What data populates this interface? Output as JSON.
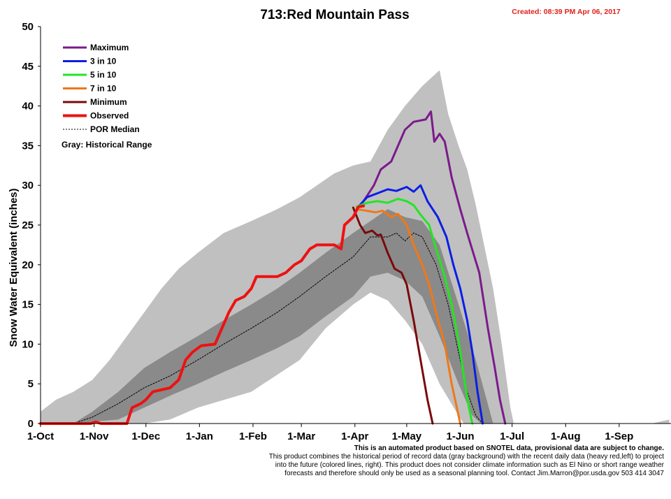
{
  "title": "713:Red Mountain Pass",
  "created": "Created: 08:39 PM Apr 06, 2017",
  "footnote": {
    "lead": "This is an automated product based on SNOTEL data, provisional data are subject to change.",
    "lines": [
      "This product combines the historical period of record data (gray background) with the recent daily data (heavy red,left) to project",
      "into the future (colored lines, right). This product does not consider climate information such as El Nino or short range weather",
      "forecasts and therefore should only be used as a seasonal planning tool. Contact Jim.Marron@por.usda.gov 503 414 3047"
    ]
  },
  "colors": {
    "maximum": "#7b1a8c",
    "p30": "#0a1ee6",
    "p50": "#22e622",
    "p70": "#f07818",
    "minimum": "#7a0a0a",
    "observed": "#ee1111",
    "median": "#000000",
    "range_outer": "#c0c0c0",
    "range_inner": "#8a8a8a",
    "range_core": "#6e6e6e",
    "created": "#e0201c"
  },
  "chart_data": {
    "type": "line",
    "title": "713:Red Mountain Pass",
    "xlabel": "",
    "ylabel": "Snow Water Equivalent (inches)",
    "ylim": [
      0,
      50
    ],
    "yticks": [
      0,
      5,
      10,
      15,
      20,
      25,
      30,
      35,
      40,
      45,
      50
    ],
    "x_unit": "date (water year Oct 1 2016 - Sep 30 2017)",
    "xticks": [
      "1-Oct",
      "1-Nov",
      "1-Dec",
      "1-Jan",
      "1-Feb",
      "1-Mar",
      "1-Apr",
      "1-May",
      "1-Jun",
      "1-Jul",
      "1-Aug",
      "1-Sep"
    ],
    "legend": {
      "placement": "top-left",
      "entries": [
        "Maximum",
        "3 in 10",
        "5 in 10",
        "7 in 10",
        "Minimum",
        "Observed",
        "POR Median"
      ],
      "note": "Gray: Historical Range"
    },
    "historical_range": {
      "outer_upper": [
        [
          "2016-10-01",
          1.5
        ],
        [
          "2016-10-10",
          3
        ],
        [
          "2016-10-20",
          4
        ],
        [
          "2016-10-31",
          5.5
        ],
        [
          "2016-11-10",
          8
        ],
        [
          "2016-11-20",
          11
        ],
        [
          "2016-11-30",
          14
        ],
        [
          "2016-12-10",
          17
        ],
        [
          "2016-12-20",
          19.5
        ],
        [
          "2016-12-31",
          21.5
        ],
        [
          "2017-01-15",
          24
        ],
        [
          "2017-01-31",
          25.5
        ],
        [
          "2017-02-15",
          27
        ],
        [
          "2017-02-28",
          28.5
        ],
        [
          "2017-03-10",
          30
        ],
        [
          "2017-03-20",
          31.5
        ],
        [
          "2017-03-31",
          32.5
        ],
        [
          "2017-04-10",
          33
        ],
        [
          "2017-04-20",
          37
        ],
        [
          "2017-04-30",
          40
        ],
        [
          "2017-05-10",
          42.5
        ],
        [
          "2017-05-15",
          43.5
        ],
        [
          "2017-05-20",
          44.5
        ],
        [
          "2017-05-25",
          39
        ],
        [
          "2017-05-31",
          35
        ],
        [
          "2017-06-05",
          32
        ],
        [
          "2017-06-10",
          27.5
        ],
        [
          "2017-06-20",
          17
        ],
        [
          "2017-06-25",
          10
        ],
        [
          "2017-06-30",
          2
        ],
        [
          "2017-07-02",
          0
        ],
        [
          "2017-09-20",
          0
        ],
        [
          "2017-09-30",
          0.5
        ]
      ],
      "outer_lower": [
        [
          "2016-10-01",
          0
        ],
        [
          "2016-11-30",
          0
        ],
        [
          "2016-12-15",
          0.5
        ],
        [
          "2016-12-31",
          2
        ],
        [
          "2017-01-31",
          4
        ],
        [
          "2017-02-28",
          8
        ],
        [
          "2017-03-15",
          12
        ],
        [
          "2017-03-31",
          15
        ],
        [
          "2017-04-10",
          16.5
        ],
        [
          "2017-04-20",
          15.5
        ],
        [
          "2017-04-30",
          13
        ],
        [
          "2017-05-10",
          10
        ],
        [
          "2017-05-20",
          5
        ],
        [
          "2017-05-31",
          1
        ],
        [
          "2017-06-03",
          0
        ],
        [
          "2017-09-30",
          0
        ]
      ],
      "inner_upper": [
        [
          "2016-10-20",
          0
        ],
        [
          "2016-10-31",
          1.5
        ],
        [
          "2016-11-15",
          4
        ],
        [
          "2016-11-30",
          7
        ],
        [
          "2016-12-15",
          9
        ],
        [
          "2016-12-31",
          11
        ],
        [
          "2017-01-15",
          13
        ],
        [
          "2017-01-31",
          15
        ],
        [
          "2017-02-15",
          17
        ],
        [
          "2017-02-28",
          19
        ],
        [
          "2017-03-15",
          21.5
        ],
        [
          "2017-03-31",
          24
        ],
        [
          "2017-04-10",
          25.5
        ],
        [
          "2017-04-20",
          27
        ],
        [
          "2017-04-30",
          26
        ],
        [
          "2017-05-10",
          25.5
        ],
        [
          "2017-05-20",
          22.5
        ],
        [
          "2017-05-31",
          15
        ],
        [
          "2017-06-10",
          8
        ],
        [
          "2017-06-20",
          0
        ]
      ],
      "inner_lower": [
        [
          "2016-10-20",
          0
        ],
        [
          "2016-11-15",
          0.5
        ],
        [
          "2016-11-30",
          2
        ],
        [
          "2016-12-15",
          3.5
        ],
        [
          "2016-12-31",
          5
        ],
        [
          "2017-01-15",
          6.5
        ],
        [
          "2017-01-31",
          8
        ],
        [
          "2017-02-15",
          9.5
        ],
        [
          "2017-02-28",
          11
        ],
        [
          "2017-03-15",
          13.5
        ],
        [
          "2017-03-31",
          16
        ],
        [
          "2017-04-10",
          18.5
        ],
        [
          "2017-04-20",
          19
        ],
        [
          "2017-04-30",
          18
        ],
        [
          "2017-05-10",
          16
        ],
        [
          "2017-05-20",
          11
        ],
        [
          "2017-05-31",
          5
        ],
        [
          "2017-06-08",
          1
        ],
        [
          "2017-06-13",
          0
        ]
      ]
    },
    "series": [
      {
        "name": "Maximum",
        "color_key": "maximum",
        "width": 3,
        "points": [
          [
            "2017-04-06",
            28
          ],
          [
            "2017-04-12",
            30
          ],
          [
            "2017-04-16",
            32
          ],
          [
            "2017-04-22",
            33
          ],
          [
            "2017-04-26",
            35
          ],
          [
            "2017-04-30",
            37
          ],
          [
            "2017-05-05",
            38
          ],
          [
            "2017-05-12",
            38.3
          ],
          [
            "2017-05-15",
            39.3
          ],
          [
            "2017-05-17",
            35.5
          ],
          [
            "2017-05-20",
            36.5
          ],
          [
            "2017-05-23",
            35.5
          ],
          [
            "2017-05-27",
            31
          ],
          [
            "2017-06-01",
            27
          ],
          [
            "2017-06-05",
            24
          ],
          [
            "2017-06-12",
            19
          ],
          [
            "2017-06-17",
            12
          ],
          [
            "2017-06-21",
            7
          ],
          [
            "2017-06-24",
            3
          ],
          [
            "2017-06-27",
            0
          ]
        ]
      },
      {
        "name": "3 in 10",
        "color_key": "p30",
        "width": 3,
        "points": [
          [
            "2017-04-03",
            27.3
          ],
          [
            "2017-04-08",
            28.5
          ],
          [
            "2017-04-14",
            29
          ],
          [
            "2017-04-20",
            29.5
          ],
          [
            "2017-04-25",
            29.3
          ],
          [
            "2017-05-01",
            29.8
          ],
          [
            "2017-05-05",
            29.2
          ],
          [
            "2017-05-09",
            30
          ],
          [
            "2017-05-13",
            28
          ],
          [
            "2017-05-19",
            26
          ],
          [
            "2017-05-24",
            23.5
          ],
          [
            "2017-05-28",
            20
          ],
          [
            "2017-06-01",
            17
          ],
          [
            "2017-06-05",
            13
          ],
          [
            "2017-06-08",
            9
          ],
          [
            "2017-06-11",
            4
          ],
          [
            "2017-06-14",
            0
          ]
        ]
      },
      {
        "name": "5 in 10",
        "color_key": "p50",
        "width": 3,
        "points": [
          [
            "2017-04-02",
            27.3
          ],
          [
            "2017-04-08",
            27.8
          ],
          [
            "2017-04-14",
            28
          ],
          [
            "2017-04-20",
            27.8
          ],
          [
            "2017-04-26",
            28.3
          ],
          [
            "2017-05-01",
            28
          ],
          [
            "2017-05-05",
            27.5
          ],
          [
            "2017-05-09",
            26.3
          ],
          [
            "2017-05-14",
            25
          ],
          [
            "2017-05-18",
            22
          ],
          [
            "2017-05-23",
            18.5
          ],
          [
            "2017-05-27",
            15
          ],
          [
            "2017-05-31",
            10.5
          ],
          [
            "2017-06-03",
            6
          ],
          [
            "2017-06-06",
            2
          ],
          [
            "2017-06-08",
            0
          ]
        ]
      },
      {
        "name": "7 in 10",
        "color_key": "p70",
        "width": 3,
        "points": [
          [
            "2017-04-02",
            27
          ],
          [
            "2017-04-08",
            26.8
          ],
          [
            "2017-04-13",
            26.6
          ],
          [
            "2017-04-17",
            26.8
          ],
          [
            "2017-04-22",
            26
          ],
          [
            "2017-04-26",
            26.4
          ],
          [
            "2017-05-01",
            25
          ],
          [
            "2017-05-05",
            22.5
          ],
          [
            "2017-05-10",
            20
          ],
          [
            "2017-05-14",
            17.5
          ],
          [
            "2017-05-18",
            14
          ],
          [
            "2017-05-23",
            10
          ],
          [
            "2017-05-27",
            5
          ],
          [
            "2017-05-30",
            2
          ],
          [
            "2017-06-01",
            0
          ]
        ]
      },
      {
        "name": "Minimum",
        "color_key": "minimum",
        "width": 3,
        "points": [
          [
            "2017-03-31",
            27.2
          ],
          [
            "2017-04-04",
            25
          ],
          [
            "2017-04-07",
            24
          ],
          [
            "2017-04-11",
            24.3
          ],
          [
            "2017-04-14",
            23.7
          ],
          [
            "2017-04-16",
            23.8
          ],
          [
            "2017-04-20",
            21.5
          ],
          [
            "2017-04-24",
            19.5
          ],
          [
            "2017-04-28",
            19
          ],
          [
            "2017-05-01",
            17.5
          ],
          [
            "2017-05-05",
            13
          ],
          [
            "2017-05-09",
            8
          ],
          [
            "2017-05-13",
            3
          ],
          [
            "2017-05-16",
            0
          ]
        ]
      },
      {
        "name": "Observed",
        "color_key": "observed",
        "width": 4,
        "points": [
          [
            "2016-10-01",
            0
          ],
          [
            "2016-10-30",
            0
          ],
          [
            "2016-11-02",
            0.2
          ],
          [
            "2016-11-05",
            0
          ],
          [
            "2016-11-20",
            0
          ],
          [
            "2016-11-23",
            2
          ],
          [
            "2016-11-28",
            2.5
          ],
          [
            "2016-12-01",
            3
          ],
          [
            "2016-12-05",
            4
          ],
          [
            "2016-12-15",
            4.5
          ],
          [
            "2016-12-20",
            5.5
          ],
          [
            "2016-12-24",
            8
          ],
          [
            "2016-12-28",
            9
          ],
          [
            "2017-01-02",
            9.8
          ],
          [
            "2017-01-10",
            10
          ],
          [
            "2017-01-14",
            12
          ],
          [
            "2017-01-18",
            14
          ],
          [
            "2017-01-22",
            15.5
          ],
          [
            "2017-01-27",
            16
          ],
          [
            "2017-01-31",
            17
          ],
          [
            "2017-02-03",
            18.5
          ],
          [
            "2017-02-15",
            18.5
          ],
          [
            "2017-02-20",
            19
          ],
          [
            "2017-02-25",
            20
          ],
          [
            "2017-03-01",
            20.5
          ],
          [
            "2017-03-06",
            22
          ],
          [
            "2017-03-10",
            22.5
          ],
          [
            "2017-03-20",
            22.5
          ],
          [
            "2017-03-24",
            22
          ],
          [
            "2017-03-26",
            25
          ],
          [
            "2017-03-31",
            26
          ],
          [
            "2017-04-03",
            27.3
          ],
          [
            "2017-04-06",
            27.4
          ]
        ]
      },
      {
        "name": "POR Median",
        "color_key": "median",
        "width": 1,
        "dashed": true,
        "points": [
          [
            "2016-10-20",
            0
          ],
          [
            "2016-10-31",
            0.8
          ],
          [
            "2016-11-15",
            2.5
          ],
          [
            "2016-11-30",
            4.5
          ],
          [
            "2016-12-15",
            6
          ],
          [
            "2016-12-31",
            8
          ],
          [
            "2017-01-15",
            10
          ],
          [
            "2017-01-31",
            12
          ],
          [
            "2017-02-15",
            14
          ],
          [
            "2017-02-28",
            16
          ],
          [
            "2017-03-15",
            18.5
          ],
          [
            "2017-03-31",
            21
          ],
          [
            "2017-04-10",
            23.5
          ],
          [
            "2017-04-20",
            23.5
          ],
          [
            "2017-04-25",
            24
          ],
          [
            "2017-04-30",
            23
          ],
          [
            "2017-05-05",
            24
          ],
          [
            "2017-05-10",
            23.5
          ],
          [
            "2017-05-18",
            20
          ],
          [
            "2017-05-25",
            15
          ],
          [
            "2017-05-31",
            9
          ],
          [
            "2017-06-05",
            4
          ],
          [
            "2017-06-10",
            1
          ],
          [
            "2017-06-14",
            0
          ]
        ]
      }
    ]
  }
}
